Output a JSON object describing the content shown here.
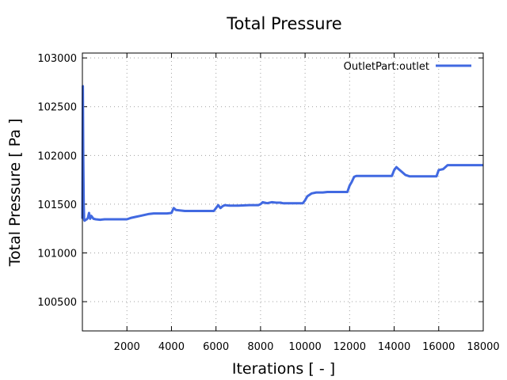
{
  "chart_data": {
    "type": "line",
    "title": "Total Pressure",
    "xlabel": "Iterations [ - ]",
    "ylabel": "Total Pressure [ Pa ]",
    "xlim": [
      0,
      18000
    ],
    "ylim": [
      100200,
      103050
    ],
    "xticks": [
      2000,
      4000,
      6000,
      8000,
      10000,
      12000,
      14000,
      16000,
      18000
    ],
    "yticks": [
      100500,
      101000,
      101500,
      102000,
      102500,
      103000
    ],
    "grid": true,
    "legend_position": "top-right",
    "series": [
      {
        "name": "OutletPart:outlet",
        "color": "#4169e1",
        "x": [
          0,
          20,
          40,
          60,
          80,
          100,
          150,
          200,
          250,
          300,
          350,
          400,
          500,
          600,
          800,
          1000,
          1200,
          1500,
          1800,
          2000,
          2200,
          2400,
          2600,
          2800,
          3000,
          3200,
          3500,
          3800,
          4000,
          4100,
          4200,
          4400,
          4600,
          4800,
          5000,
          5500,
          5900,
          6000,
          6100,
          6200,
          6300,
          6400,
          6600,
          7000,
          7500,
          7900,
          8000,
          8100,
          8300,
          8500,
          8700,
          8900,
          9000,
          9500,
          9900,
          10000,
          10100,
          10300,
          10500,
          10800,
          11000,
          11500,
          11900,
          12000,
          12100,
          12200,
          12300,
          12500,
          12800,
          13000,
          13500,
          13900,
          14000,
          14100,
          14200,
          14300,
          14500,
          14700,
          14900,
          15500,
          15900,
          16000,
          16200,
          16400,
          16600,
          17000,
          17500,
          18000
        ],
        "y": [
          101350,
          102710,
          102000,
          101500,
          101340,
          101330,
          101340,
          101345,
          101360,
          101410,
          101350,
          101380,
          101350,
          101345,
          101340,
          101345,
          101345,
          101345,
          101345,
          101345,
          101360,
          101370,
          101380,
          101390,
          101400,
          101405,
          101405,
          101405,
          101410,
          101460,
          101440,
          101435,
          101430,
          101430,
          101430,
          101430,
          101430,
          101460,
          101490,
          101460,
          101480,
          101490,
          101485,
          101485,
          101490,
          101490,
          101500,
          101520,
          101510,
          101520,
          101515,
          101515,
          101510,
          101510,
          101510,
          101540,
          101580,
          101610,
          101620,
          101620,
          101625,
          101625,
          101625,
          101690,
          101730,
          101780,
          101790,
          101790,
          101790,
          101790,
          101790,
          101790,
          101850,
          101880,
          101860,
          101840,
          101800,
          101785,
          101785,
          101785,
          101785,
          101850,
          101860,
          101900,
          101900,
          101900,
          101900,
          101900
        ]
      }
    ]
  }
}
